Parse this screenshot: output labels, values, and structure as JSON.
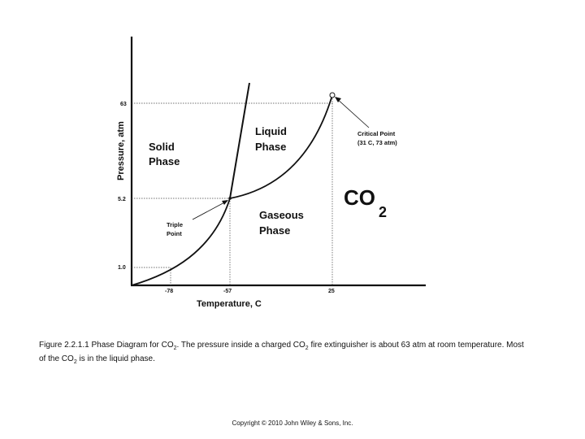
{
  "diagram": {
    "y_axis_title": "Pressure, atm",
    "x_axis_title": "Temperature, C",
    "y_ticks": [
      "63",
      "5.2",
      "1.0"
    ],
    "x_ticks": [
      "-78",
      "-57",
      "25"
    ],
    "regions": {
      "solid_line1": "Solid",
      "solid_line2": "Phase",
      "liquid_line1": "Liquid",
      "liquid_line2": "Phase",
      "gaseous_line1": "Gaseous",
      "gaseous_line2": "Phase"
    },
    "triple_point_line1": "Triple",
    "triple_point_line2": "Point",
    "critical_point_line1": "Critical Point",
    "critical_point_line2": "(31 C, 73 atm)",
    "compound_main": "CO",
    "compound_sub": "2"
  },
  "caption": {
    "part1": "Figure 2.2.1.1   Phase Diagram for CO",
    "sub1": "2",
    "part2": ". The pressure inside a charged CO",
    "sub2": "2",
    "part3": " fire extinguisher is about 63 atm at room temperature. Most of the CO",
    "sub3": "2",
    "part4": " is in the liquid phase."
  },
  "copyright": "Copyright © 2010 John Wiley & Sons, Inc."
}
